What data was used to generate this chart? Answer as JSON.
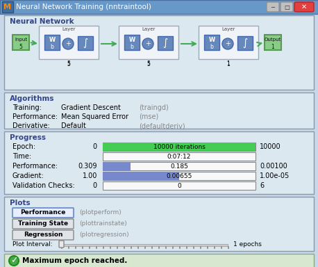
{
  "title": "Neural Network Training (nntraintool)",
  "title_bar_color": "#6090c0",
  "title_text_color": "#ffffff",
  "bg_color": "#c8d8e8",
  "panel_bg": "#dce8f0",
  "panel_border": "#8899aa",
  "section_title_color": "#334488",
  "text_color": "#000000",
  "gray_text": "#888888",
  "green_bar_color": "#44cc55",
  "blue_bar_color": "#7788cc",
  "white_bar_bg": "#f8f8f8",
  "algorithms": [
    [
      "Training:",
      "Gradient Descent",
      "(traingd)"
    ],
    [
      "Performance:",
      "Mean Squared Error",
      "(mse)"
    ],
    [
      "Derivative:",
      "Default",
      "(defaultderiv)"
    ]
  ],
  "progress_rows": [
    {
      "label": "Epoch:",
      "left": "0",
      "bar_text": "10000 iterations",
      "bar_fill": 1.0,
      "bar_color": "#44cc55",
      "right": "10000"
    },
    {
      "label": "Time:",
      "left": "",
      "bar_text": "0:07:12",
      "bar_fill": 0.0,
      "bar_color": "#f8f8f8",
      "right": ""
    },
    {
      "label": "Performance:",
      "left": "0.309",
      "bar_text": "0.185",
      "bar_fill": 0.18,
      "bar_color": "#7788cc",
      "right": "0.00100"
    },
    {
      "label": "Gradient:",
      "left": "1.00",
      "bar_text": "0.00655",
      "bar_fill": 0.5,
      "bar_color": "#7788cc",
      "right": "1.00e-05"
    },
    {
      "label": "Validation Checks:",
      "left": "0",
      "bar_text": "0",
      "bar_fill": 0.0,
      "bar_color": "#f8f8f8",
      "right": "6"
    }
  ],
  "plot_buttons": [
    {
      "label": "Performance",
      "caption": "(plotperform)",
      "highlight": true
    },
    {
      "label": "Training State",
      "caption": "(plottrainstate)",
      "highlight": false
    },
    {
      "label": "Regression",
      "caption": "(plotregression)",
      "highlight": false
    }
  ],
  "status_text": "Maximum epoch reached.",
  "epochs_text": "1 epochs",
  "nn_sections": [
    {
      "label": "5",
      "x": 5
    },
    {
      "label": "5",
      "x": 5
    },
    {
      "label": "1",
      "x": 5
    }
  ]
}
